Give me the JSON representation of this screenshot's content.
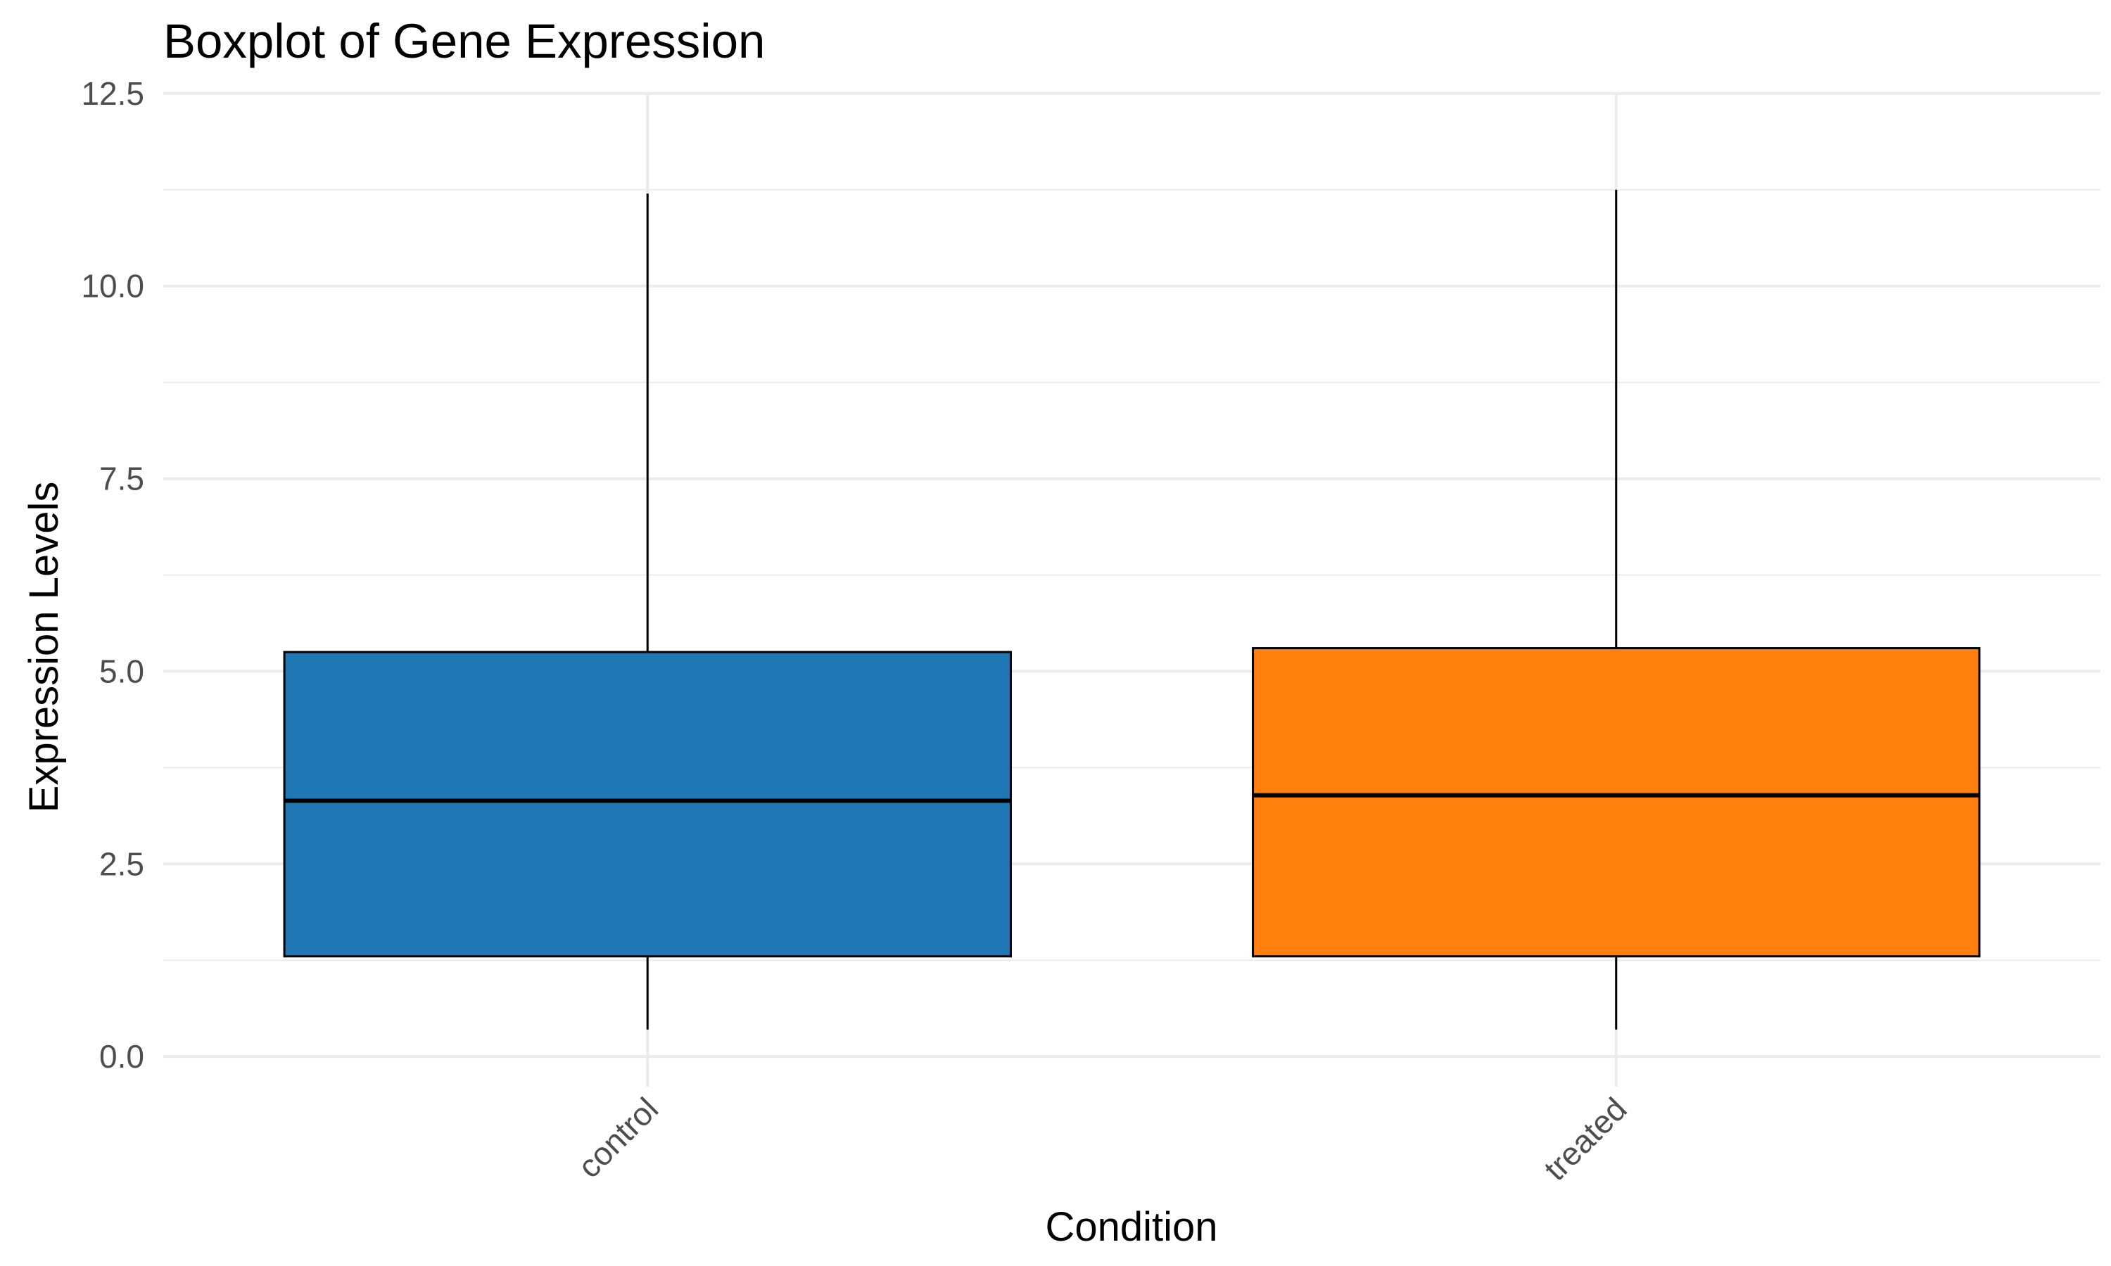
{
  "chart_data": {
    "type": "boxplot",
    "title": "Boxplot of Gene Expression",
    "xlabel": "Condition",
    "ylabel": "Expression Levels",
    "ylim": [
      -0.3,
      12.8
    ],
    "yticks": [
      0.0,
      2.5,
      5.0,
      7.5,
      10.0,
      12.5
    ],
    "ytick_labels": [
      "0.0",
      "2.5",
      "5.0",
      "7.5",
      "10.0",
      "12.5"
    ],
    "grid": true,
    "legend": "none",
    "categories": [
      "control",
      "treated"
    ],
    "boxes": [
      {
        "category": "control",
        "whisker_low": 0.35,
        "q1": 1.3,
        "median": 3.32,
        "q3": 5.25,
        "whisker_high": 11.2,
        "color": "#1f77b4"
      },
      {
        "category": "treated",
        "whisker_low": 0.35,
        "q1": 1.3,
        "median": 3.39,
        "q3": 5.3,
        "whisker_high": 11.25,
        "color": "#ff7f0e"
      }
    ]
  }
}
